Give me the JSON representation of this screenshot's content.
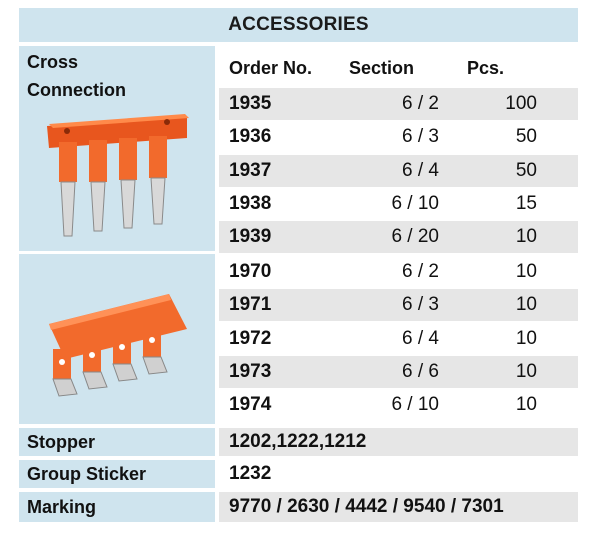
{
  "header": "ACCESSORIES",
  "cross_connection": {
    "label_line1": "Cross",
    "label_line2": "Connection",
    "columns": {
      "order": "Order No.",
      "section": "Section",
      "pcs": "Pcs."
    },
    "rows": [
      {
        "order": "1935",
        "section": "6 / 2",
        "pcs": "100"
      },
      {
        "order": "1936",
        "section": "6 / 3",
        "pcs": "50"
      },
      {
        "order": "1937",
        "section": "6 / 4",
        "pcs": "50"
      },
      {
        "order": "1938",
        "section": "6 / 10",
        "pcs": "15"
      },
      {
        "order": "1939",
        "section": "6 / 20",
        "pcs": "10"
      },
      {
        "order": "1970",
        "section": "6 / 2",
        "pcs": "10"
      },
      {
        "order": "1971",
        "section": "6 / 3",
        "pcs": "10"
      },
      {
        "order": "1972",
        "section": "6 / 4",
        "pcs": "10"
      },
      {
        "order": "1973",
        "section": "6 / 6",
        "pcs": "10"
      },
      {
        "order": "1974",
        "section": "6 / 10",
        "pcs": "10"
      }
    ]
  },
  "stopper": {
    "label": "Stopper",
    "value": "1202,1222,1212"
  },
  "group_sticker": {
    "label": "Group Sticker",
    "value": "1232"
  },
  "marking": {
    "label": "Marking",
    "value": "9770 / 2630 / 4442 / 9540 / 7301"
  },
  "colors": {
    "accent_blue": "#cfe4ee",
    "row_shade": "#e6e6e6",
    "connector_orange": "#f26a2c"
  }
}
